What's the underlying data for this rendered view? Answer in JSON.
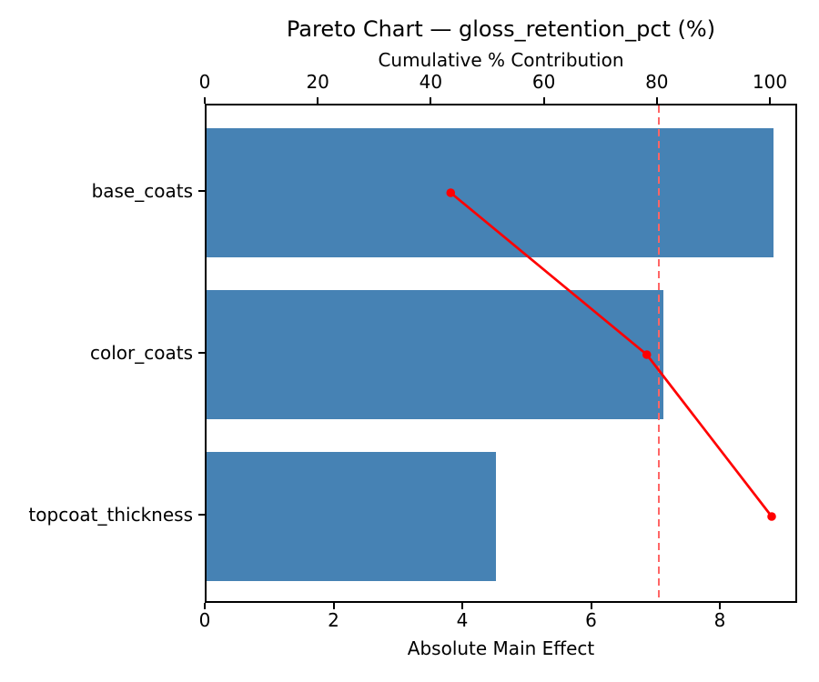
{
  "chart_data": {
    "type": "bar",
    "variant": "pareto",
    "orientation": "horizontal",
    "title": "Pareto Chart — gloss_retention_pct (%)",
    "categories": [
      "base_coats",
      "color_coats",
      "topcoat_thickness"
    ],
    "values": [
      8.8,
      7.1,
      4.5
    ],
    "xlabel": "Absolute Main Effect",
    "x_ticks": [
      0,
      2,
      4,
      6,
      8
    ],
    "xlim": [
      0,
      9.2
    ],
    "grid": false,
    "legend": "none",
    "bar_color": "#4682B4",
    "top_axis": {
      "label": "Cumulative % Contribution",
      "ticks": [
        0,
        20,
        40,
        60,
        80,
        100
      ],
      "lim": [
        0,
        104.8
      ]
    },
    "cumulative_line": {
      "values_pct": [
        43.2,
        77.9,
        100.0
      ],
      "color": "#FF0000",
      "marker": "circle"
    },
    "threshold_line": {
      "value_pct": 80,
      "style": "dashed",
      "color": "#FF6666"
    }
  }
}
